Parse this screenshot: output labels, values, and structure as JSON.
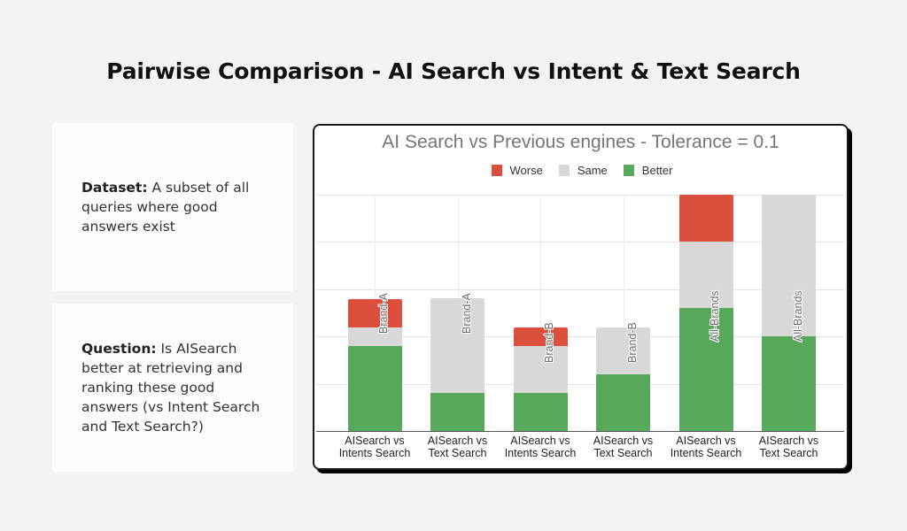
{
  "page": {
    "title": "Pairwise Comparison - AI Search vs Intent & Text Search"
  },
  "cards": {
    "dataset": {
      "label": "Dataset:",
      "text": " A subset of all queries where good answers exist"
    },
    "question": {
      "label": "Question:",
      "text": " Is AISearch better at retrieving and ranking these good answers (vs Intent Search and Text Search?)"
    }
  },
  "colors": {
    "worse": "#db4f3c",
    "same": "#d8d8d8",
    "better": "#57a85a",
    "title": "#757575"
  },
  "chart_data": {
    "type": "bar",
    "stacked": true,
    "title": "AI Search vs Previous engines - Tolerance = 0.1",
    "xlabel": "",
    "ylabel": "",
    "ylim": [
      0,
      5
    ],
    "grid": true,
    "y_tick_labels_shown": false,
    "legend_position": "top",
    "legend": [
      "Worse",
      "Same",
      "Better"
    ],
    "categories": [
      "AISearch vs Intents Search",
      "AISearch vs Text Search",
      "AISearch vs Intents Search",
      "AISearch vs Text Search",
      "AISearch vs Intents Search",
      "AISearch vs Text Search"
    ],
    "annotations": [
      "Brand-A",
      "Brand-A",
      "Brand-B",
      "Brand-B",
      "All-Brands",
      "All-Brands"
    ],
    "series": [
      {
        "name": "Better",
        "color": "#57a85a",
        "values": [
          1.8,
          0.8,
          0.8,
          1.2,
          2.6,
          2.0
        ]
      },
      {
        "name": "Same",
        "color": "#d8d8d8",
        "values": [
          0.4,
          2.0,
          1.0,
          1.0,
          1.4,
          3.0
        ]
      },
      {
        "name": "Worse",
        "color": "#db4f3c",
        "values": [
          0.6,
          0.0,
          0.4,
          0.0,
          1.0,
          0.0
        ]
      }
    ],
    "xtick_lines": [
      [
        "AISearch vs",
        "Intents Search"
      ],
      [
        "AISearch vs",
        "Text Search"
      ],
      [
        "AISearch vs",
        "Intents Search"
      ],
      [
        "AISearch vs",
        "Text Search"
      ],
      [
        "AISearch vs",
        "Intents Search"
      ],
      [
        "AISearch vs",
        "Text Search"
      ]
    ]
  }
}
